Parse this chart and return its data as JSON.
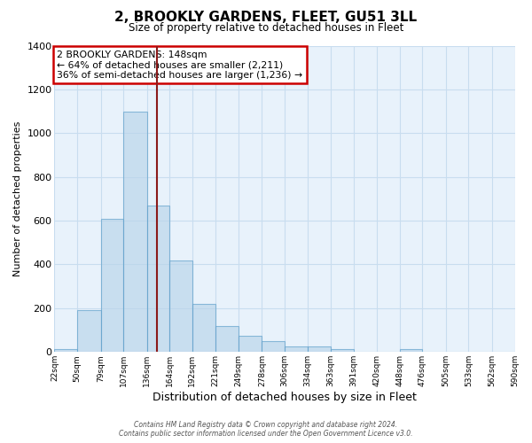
{
  "title": "2, BROOKLY GARDENS, FLEET, GU51 3LL",
  "subtitle": "Size of property relative to detached houses in Fleet",
  "xlabel": "Distribution of detached houses by size in Fleet",
  "ylabel": "Number of detached properties",
  "bin_edges": [
    22,
    50,
    79,
    107,
    136,
    164,
    192,
    221,
    249,
    278,
    306,
    334,
    363,
    391,
    420,
    448,
    476,
    505,
    533,
    562,
    590
  ],
  "bar_heights": [
    15,
    190,
    610,
    1100,
    670,
    420,
    220,
    120,
    75,
    50,
    25,
    25,
    15,
    0,
    0,
    15,
    0,
    0,
    0,
    0
  ],
  "bar_color": "#b8d4ea",
  "bar_edge_color": "#5b9ec9",
  "bar_alpha": 0.65,
  "grid_color": "#c8ddef",
  "bg_color": "#e8f2fb",
  "vline_x": 148,
  "vline_color": "#8b1a1a",
  "ylim": [
    0,
    1400
  ],
  "yticks": [
    0,
    200,
    400,
    600,
    800,
    1000,
    1200,
    1400
  ],
  "annotation_lines": [
    "2 BROOKLY GARDENS: 148sqm",
    "← 64% of detached houses are smaller (2,211)",
    "36% of semi-detached houses are larger (1,236) →"
  ],
  "annotation_box_color": "#ffffff",
  "annotation_box_edge_color": "#cc0000",
  "footer1": "Contains HM Land Registry data © Crown copyright and database right 2024.",
  "footer2": "Contains public sector information licensed under the Open Government Licence v3.0.",
  "fig_width": 6.0,
  "fig_height": 5.0,
  "dpi": 100
}
